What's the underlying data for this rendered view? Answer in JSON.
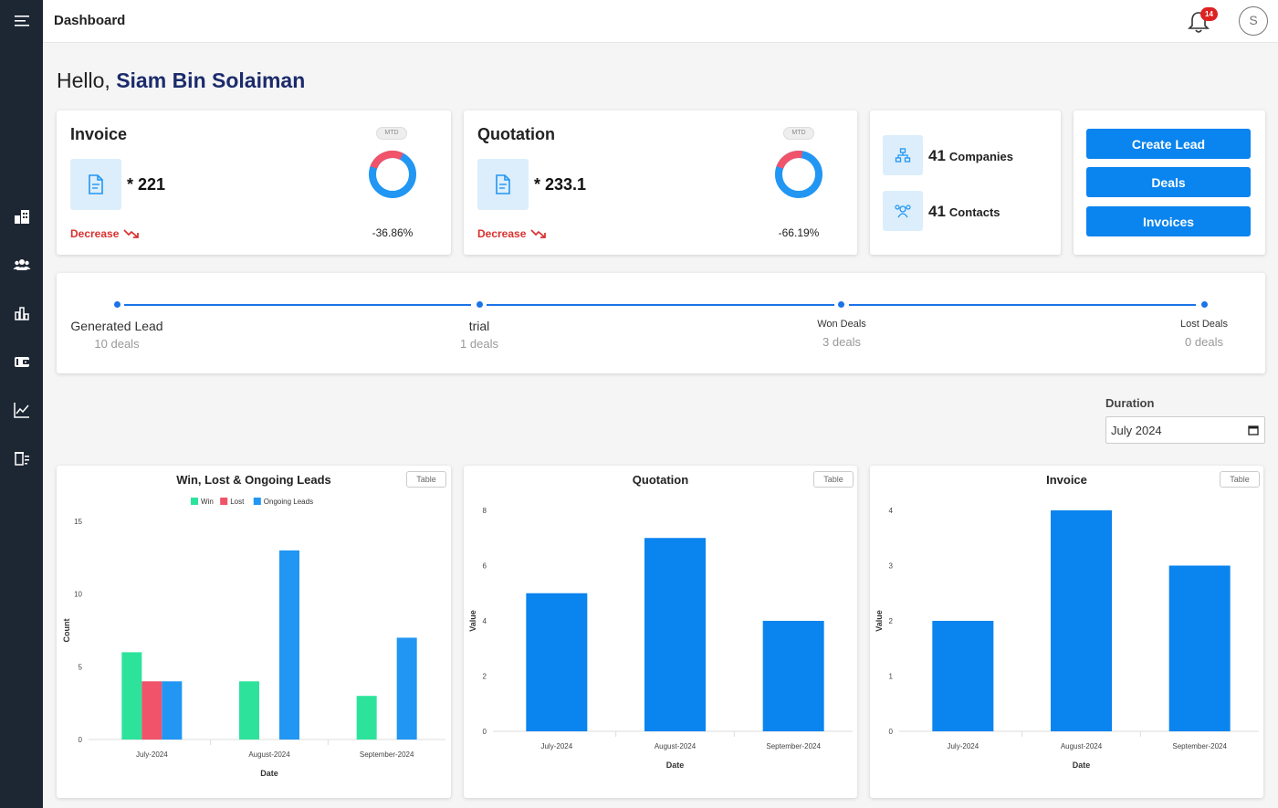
{
  "header": {
    "title": "Dashboard",
    "notification_count": "14",
    "avatar_initial": "S"
  },
  "sidebar": {
    "icons": [
      "menu-icon",
      "buildings-icon",
      "users-icon",
      "bar-chart-icon",
      "wallet-icon",
      "line-chart-icon",
      "list-icon"
    ]
  },
  "greeting": {
    "prefix": "Hello, ",
    "name": "Siam Bin Solaiman"
  },
  "kpis": [
    {
      "title": "Invoice",
      "value": "* 221",
      "trend": "Decrease",
      "badge": "MTD",
      "percent": "-36.86%",
      "donut_red_fraction": 0.27
    },
    {
      "title": "Quotation",
      "value": "* 233.1",
      "trend": "Decrease",
      "badge": "MTD",
      "percent": "-66.19%",
      "donut_red_fraction": 0.22
    }
  ],
  "entities": [
    {
      "count": "41",
      "label": "Companies",
      "icon": "org-chart-icon"
    },
    {
      "count": "41",
      "label": "Contacts",
      "icon": "contacts-icon"
    }
  ],
  "actions": {
    "create_lead": "Create Lead",
    "deals": "Deals",
    "invoices": "Invoices"
  },
  "pipeline": [
    {
      "label": "Generated Lead",
      "sub": "10 deals"
    },
    {
      "label": "trial",
      "sub": "1 deals"
    },
    {
      "label": "Won Deals",
      "sub": "3 deals"
    },
    {
      "label": "Lost Deals",
      "sub": "0 deals"
    }
  ],
  "duration": {
    "label": "Duration",
    "value": "July 2024"
  },
  "colors": {
    "primary": "#0a84ee",
    "win": "#2de39b",
    "lost": "#f0536a",
    "ongoing": "#2196f3",
    "decrease": "#d9312e",
    "sidebar": "#1d2633"
  },
  "chart_data": [
    {
      "type": "bar",
      "title": "Win, Lost & Ongoing Leads",
      "table_label": "Table",
      "categories": [
        "July-2024",
        "August-2024",
        "September-2024"
      ],
      "series": [
        {
          "name": "Win",
          "values": [
            6,
            4,
            3
          ]
        },
        {
          "name": "Lost",
          "values": [
            4,
            0,
            0
          ]
        },
        {
          "name": "Ongoing Leads",
          "values": [
            4,
            13,
            7
          ]
        }
      ],
      "xlabel": "Date",
      "ylabel": "Count",
      "ylim": [
        0,
        15
      ],
      "yticks": [
        0,
        5,
        10,
        15
      ],
      "legend": "top"
    },
    {
      "type": "bar",
      "title": "Quotation",
      "table_label": "Table",
      "categories": [
        "July-2024",
        "August-2024",
        "September-2024"
      ],
      "values": [
        5,
        7,
        4
      ],
      "xlabel": "Date",
      "ylabel": "Value",
      "ylim": [
        0,
        8
      ],
      "yticks": [
        0,
        2,
        4,
        6,
        8
      ]
    },
    {
      "type": "bar",
      "title": "Invoice",
      "table_label": "Table",
      "categories": [
        "July-2024",
        "August-2024",
        "September-2024"
      ],
      "values": [
        2,
        4,
        3
      ],
      "xlabel": "Date",
      "ylabel": "Value",
      "ylim": [
        0,
        4
      ],
      "yticks": [
        0,
        1,
        2,
        3,
        4
      ]
    }
  ]
}
